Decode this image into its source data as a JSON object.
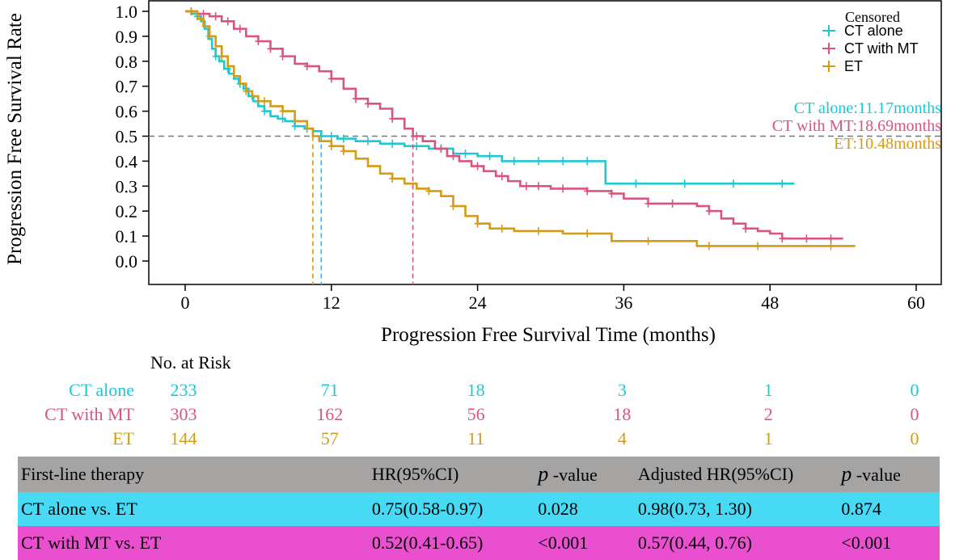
{
  "chart_data": {
    "type": "line",
    "subtype": "kaplan-meier-step",
    "title": "",
    "xlabel": "Progression Free Survival Time (months)",
    "ylabel": "Progression Free Survival Rate",
    "xlim": [
      0,
      60
    ],
    "ylim": [
      0,
      1
    ],
    "xticks": [
      0,
      12,
      24,
      36,
      48,
      60
    ],
    "yticks": [
      0.0,
      0.1,
      0.2,
      0.3,
      0.4,
      0.5,
      0.6,
      0.7,
      0.8,
      0.9,
      1.0
    ],
    "reference_line": {
      "y": 0.5,
      "style": "dashed"
    },
    "legend": {
      "title": "Censored",
      "position": "top-right",
      "entries": [
        "CT alone",
        "CT with MT",
        "ET"
      ]
    },
    "series": [
      {
        "name": "CT alone",
        "color": "#1ec8d2",
        "median_label": "CT alone:11.17months",
        "median": 11.17,
        "points": [
          [
            0,
            1.0
          ],
          [
            0.5,
            0.99
          ],
          [
            1,
            0.98
          ],
          [
            1.3,
            0.96
          ],
          [
            1.6,
            0.93
          ],
          [
            1.9,
            0.89
          ],
          [
            2.2,
            0.85
          ],
          [
            2.5,
            0.82
          ],
          [
            2.8,
            0.8
          ],
          [
            3.2,
            0.77
          ],
          [
            3.6,
            0.75
          ],
          [
            4.0,
            0.73
          ],
          [
            4.4,
            0.71
          ],
          [
            4.8,
            0.69
          ],
          [
            5.2,
            0.66
          ],
          [
            5.6,
            0.64
          ],
          [
            6.0,
            0.62
          ],
          [
            6.5,
            0.6
          ],
          [
            7.0,
            0.58
          ],
          [
            7.6,
            0.57
          ],
          [
            8.2,
            0.56
          ],
          [
            9.0,
            0.54
          ],
          [
            9.8,
            0.53
          ],
          [
            10.5,
            0.52
          ],
          [
            11.17,
            0.5
          ],
          [
            12.5,
            0.49
          ],
          [
            14,
            0.48
          ],
          [
            16,
            0.47
          ],
          [
            18,
            0.46
          ],
          [
            20,
            0.45
          ],
          [
            22,
            0.43
          ],
          [
            24,
            0.42
          ],
          [
            25,
            0.42
          ],
          [
            26,
            0.4
          ],
          [
            28,
            0.4
          ],
          [
            30,
            0.4
          ],
          [
            32,
            0.4
          ],
          [
            34.5,
            0.4
          ],
          [
            34.5,
            0.31
          ],
          [
            40,
            0.31
          ],
          [
            45,
            0.31
          ],
          [
            49,
            0.31
          ],
          [
            50,
            0.31
          ]
        ],
        "censor_x": [
          1,
          2.5,
          3.5,
          4.5,
          5.5,
          6.5,
          8,
          9,
          10,
          12,
          13,
          15,
          17,
          19,
          21,
          23,
          25,
          27,
          29,
          31,
          33,
          37,
          41,
          45,
          49
        ]
      },
      {
        "name": "CT with MT",
        "color": "#d9547e",
        "median_label": "CT with MT:18.69months",
        "median": 18.69,
        "points": [
          [
            0,
            1.0
          ],
          [
            1,
            0.99
          ],
          [
            2,
            0.98
          ],
          [
            3,
            0.96
          ],
          [
            4,
            0.93
          ],
          [
            5,
            0.9
          ],
          [
            6,
            0.88
          ],
          [
            7,
            0.85
          ],
          [
            8,
            0.82
          ],
          [
            9,
            0.79
          ],
          [
            10,
            0.78
          ],
          [
            11,
            0.76
          ],
          [
            12,
            0.73
          ],
          [
            13,
            0.69
          ],
          [
            14,
            0.65
          ],
          [
            15,
            0.63
          ],
          [
            16,
            0.61
          ],
          [
            17,
            0.57
          ],
          [
            18,
            0.53
          ],
          [
            18.69,
            0.5
          ],
          [
            19.5,
            0.48
          ],
          [
            20.5,
            0.45
          ],
          [
            21.5,
            0.42
          ],
          [
            22.5,
            0.4
          ],
          [
            23.5,
            0.38
          ],
          [
            24.5,
            0.36
          ],
          [
            25.5,
            0.34
          ],
          [
            26.5,
            0.32
          ],
          [
            27.5,
            0.3
          ],
          [
            30,
            0.29
          ],
          [
            33,
            0.28
          ],
          [
            35,
            0.27
          ],
          [
            36,
            0.25
          ],
          [
            38,
            0.23
          ],
          [
            42,
            0.22
          ],
          [
            43,
            0.2
          ],
          [
            44,
            0.17
          ],
          [
            45,
            0.15
          ],
          [
            46,
            0.13
          ],
          [
            47,
            0.12
          ],
          [
            48,
            0.11
          ],
          [
            49,
            0.09
          ],
          [
            54,
            0.09
          ]
        ],
        "censor_x": [
          0.5,
          1.5,
          2.5,
          3.5,
          4.5,
          6,
          7,
          8,
          10,
          12,
          14,
          15,
          17,
          19,
          21,
          22,
          24,
          26,
          28,
          29,
          31,
          33,
          35,
          38,
          40,
          43,
          46,
          49,
          51,
          53
        ]
      },
      {
        "name": "ET",
        "color": "#d49b13",
        "median_label": "ET:10.48months",
        "median": 10.48,
        "points": [
          [
            0,
            1.0
          ],
          [
            1,
            0.97
          ],
          [
            1.5,
            0.94
          ],
          [
            2,
            0.9
          ],
          [
            2.5,
            0.86
          ],
          [
            3,
            0.82
          ],
          [
            3.5,
            0.78
          ],
          [
            4,
            0.74
          ],
          [
            4.5,
            0.71
          ],
          [
            5,
            0.68
          ],
          [
            5.5,
            0.66
          ],
          [
            6,
            0.64
          ],
          [
            7,
            0.62
          ],
          [
            8,
            0.6
          ],
          [
            9,
            0.56
          ],
          [
            10,
            0.53
          ],
          [
            10.48,
            0.5
          ],
          [
            11,
            0.48
          ],
          [
            12,
            0.46
          ],
          [
            13,
            0.44
          ],
          [
            14,
            0.41
          ],
          [
            15,
            0.38
          ],
          [
            16,
            0.35
          ],
          [
            17,
            0.33
          ],
          [
            18,
            0.31
          ],
          [
            19,
            0.29
          ],
          [
            20,
            0.28
          ],
          [
            21,
            0.26
          ],
          [
            22,
            0.22
          ],
          [
            23,
            0.18
          ],
          [
            24,
            0.15
          ],
          [
            25,
            0.13
          ],
          [
            27,
            0.12
          ],
          [
            31,
            0.11
          ],
          [
            35,
            0.08
          ],
          [
            42,
            0.08
          ],
          [
            42,
            0.06
          ],
          [
            55,
            0.06
          ]
        ],
        "censor_x": [
          0.5,
          2,
          3,
          5,
          6.5,
          8,
          12,
          13,
          17,
          20,
          22,
          24,
          26,
          29,
          33,
          38,
          43,
          47,
          53
        ]
      }
    ]
  },
  "risk_table": {
    "title": "No. at Risk",
    "times": [
      0,
      12,
      24,
      36,
      48,
      60
    ],
    "rows": [
      {
        "label": "CT alone",
        "color": "#1ec8d2",
        "values": [
          "233",
          "71",
          "18",
          "3",
          "1",
          "0"
        ]
      },
      {
        "label": "CT with MT",
        "color": "#d9547e",
        "values": [
          "303",
          "162",
          "56",
          "18",
          "2",
          "0"
        ]
      },
      {
        "label": "ET",
        "color": "#d49b13",
        "values": [
          "144",
          "57",
          "11",
          "4",
          "1",
          "0"
        ]
      }
    ]
  },
  "hr_table": {
    "header": {
      "therapy": "First-line therapy",
      "hr": "HR(95%CI)",
      "p_italic": "p",
      "p_suffix": " -value",
      "adj_hr": "Adjusted HR(95%CI)",
      "p2_italic": "p",
      "p2_suffix": " -value"
    },
    "rows": [
      {
        "therapy": "CT alone vs. ET",
        "hr": "0.75(0.58-0.97)",
        "p": "0.028",
        "adj_hr": "0.98(0.73, 1.30)",
        "adj_p": "0.874",
        "bg": "#47daf5"
      },
      {
        "therapy": "CT with MT vs. ET",
        "hr": "0.52(0.41-0.65)",
        "p": "<0.001",
        "adj_hr": "0.57(0.44, 0.76)",
        "adj_p": "<0.001",
        "bg": "#ea4fcf"
      }
    ]
  }
}
